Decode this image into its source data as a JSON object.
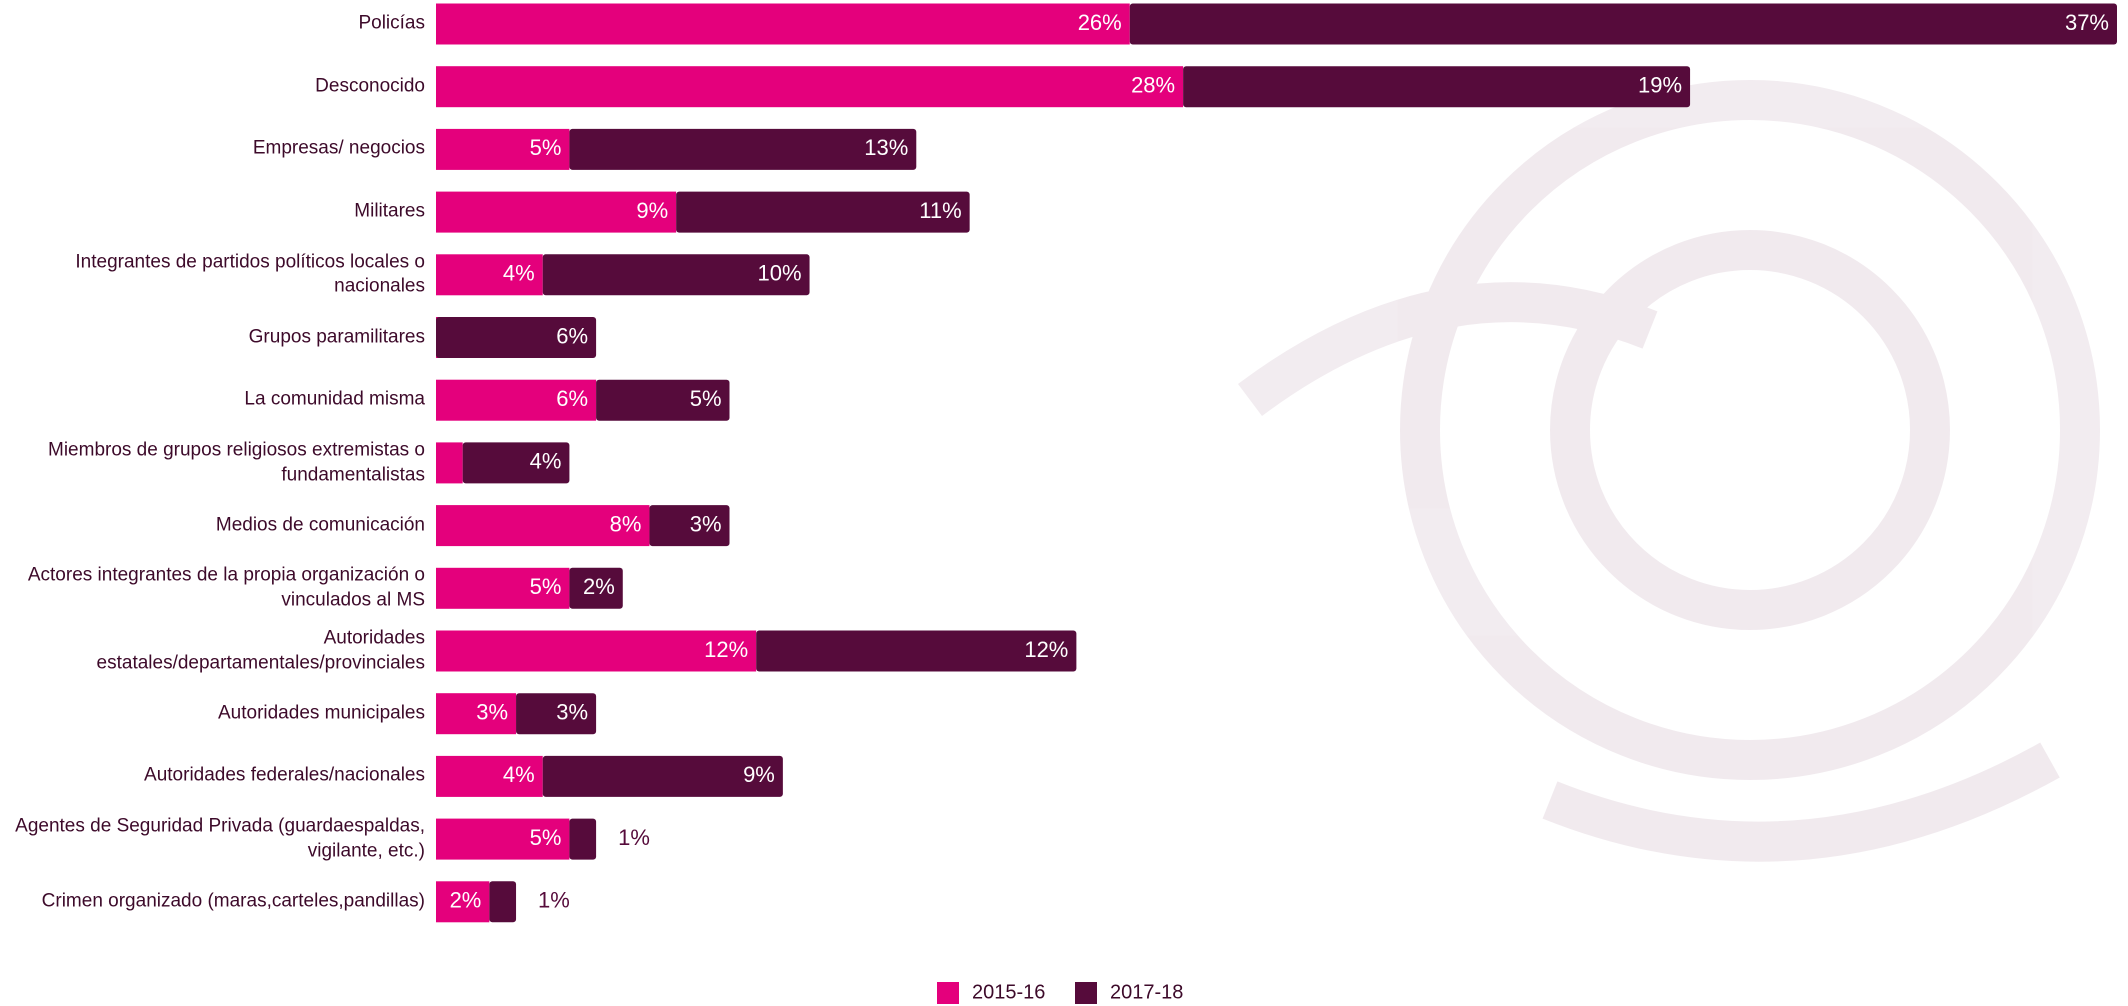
{
  "chart_data": {
    "type": "stacked-bar",
    "orientation": "horizontal",
    "categories": [
      "Policías",
      "Desconocido",
      "Empresas/ negocios",
      "Militares",
      "Integrantes de partidos políticos locales o nacionales",
      "Grupos paramilitares",
      "La comunidad misma",
      "Miembros de grupos religiosos extremistas o fundamentalistas",
      "Medios de comunicación",
      "Actores integrantes de la propia organización o vinculados al MS",
      "Autoridades estatales/departamentales/provinciales",
      "Autoridades municipales",
      "Autoridades federales/nacionales",
      "Agentes de Seguridad Privada (guardaespaldas, vigilante, etc.)",
      "Crimen organizado (maras,carteles,pandillas)"
    ],
    "series": [
      {
        "name": "2015-16",
        "color": "#e4007c",
        "values": [
          26,
          28,
          5,
          9,
          4,
          0,
          6,
          1,
          8,
          5,
          12,
          3,
          4,
          5,
          2
        ],
        "value_labels": [
          "26%",
          "28%",
          "5%",
          "9%",
          "4%",
          "0%",
          "6%",
          "1%",
          "8%",
          "5%",
          "12%",
          "3%",
          "4%",
          "5%",
          "2%"
        ]
      },
      {
        "name": "2017-18",
        "color": "#560b3b",
        "values": [
          37,
          19,
          13,
          11,
          10,
          6,
          5,
          4,
          3,
          2,
          12,
          3,
          9,
          1,
          1
        ],
        "value_labels": [
          "37%",
          "19%",
          "13%",
          "11%",
          "10%",
          "6%",
          "5%",
          "4%",
          "3%",
          "2%",
          "12%",
          "3%",
          "9%",
          "1%",
          "1%"
        ]
      }
    ],
    "legend": "bottom"
  }
}
